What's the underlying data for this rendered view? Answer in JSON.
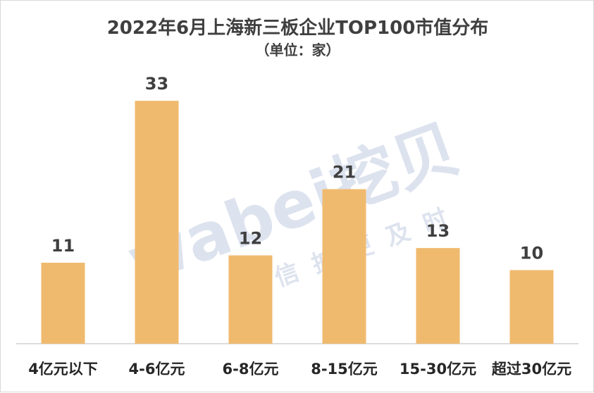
{
  "chart_data": {
    "type": "bar",
    "title": "2022年6月上海新三板企业TOP100市值分布",
    "subtitle": "（单位：家）",
    "categories": [
      "4亿元以下",
      "4-6亿元",
      "6-8亿元",
      "8-15亿元",
      "15-30亿元",
      "超过30亿元"
    ],
    "values": [
      11,
      33,
      12,
      21,
      13,
      10
    ],
    "xlabel": "",
    "ylabel": "",
    "ylim": [
      0,
      35
    ],
    "grid": false,
    "legend": "none",
    "bar_color": "#F0BA6E"
  },
  "watermark": {
    "logo_text": "wabei挖贝",
    "slogan": "让信披更及时",
    "color": "#dde3ee"
  }
}
